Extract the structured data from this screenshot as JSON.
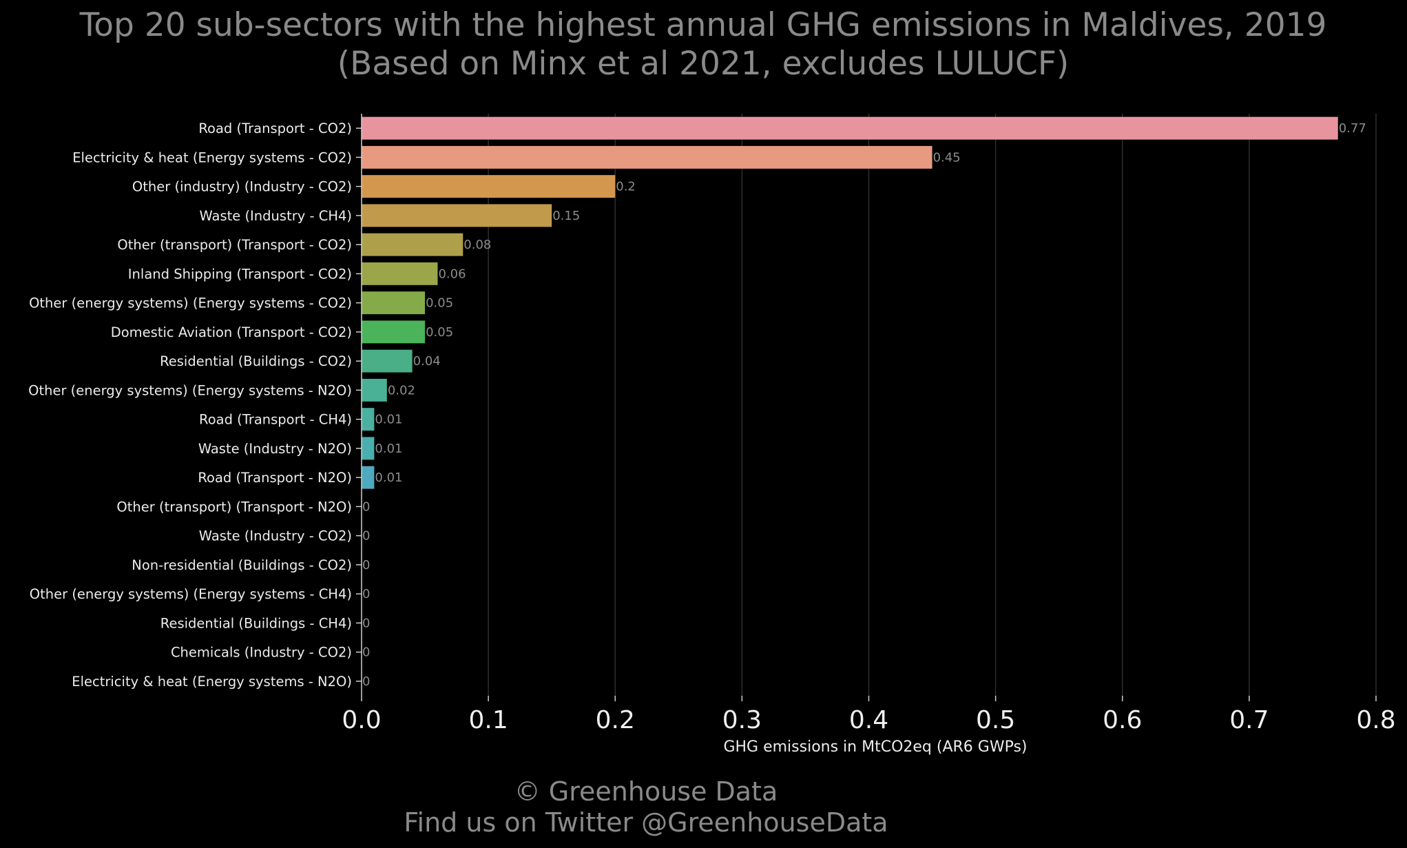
{
  "chart_data": {
    "type": "bar",
    "orientation": "horizontal",
    "title": "Top 20 sub-sectors with the highest annual GHG emissions in Maldives, 2019",
    "subtitle": "(Based on Minx et al 2021, excludes LULUCF)",
    "xlabel": "GHG emissions in MtCO2eq (AR6 GWPs)",
    "ylabel": "",
    "xlim": [
      0,
      0.8
    ],
    "xticks": [
      0.0,
      0.1,
      0.2,
      0.3,
      0.4,
      0.5,
      0.6,
      0.7,
      0.8
    ],
    "xtick_labels": [
      "0.0",
      "0.1",
      "0.2",
      "0.3",
      "0.4",
      "0.5",
      "0.6",
      "0.7",
      "0.8"
    ],
    "grid": "vertical",
    "legend": "none",
    "categories": [
      "Road (Transport - CO2)",
      "Electricity & heat (Energy systems - CO2)",
      "Other (industry) (Industry - CO2)",
      "Waste (Industry - CH4)",
      "Other (transport) (Transport - CO2)",
      "Inland Shipping (Transport - CO2)",
      "Other (energy systems) (Energy systems - CO2)",
      "Domestic Aviation (Transport - CO2)",
      "Residential (Buildings - CO2)",
      "Other (energy systems) (Energy systems - N2O)",
      "Road (Transport - CH4)",
      "Waste (Industry - N2O)",
      "Road (Transport - N2O)",
      "Other (transport) (Transport - N2O)",
      "Waste (Industry - CO2)",
      "Non-residential (Buildings - CO2)",
      "Other (energy systems) (Energy systems - CH4)",
      "Residential (Buildings - CH4)",
      "Chemicals (Industry - CO2)",
      "Electricity & heat (Energy systems - N2O)"
    ],
    "values": [
      0.77,
      0.45,
      0.2,
      0.15,
      0.08,
      0.06,
      0.05,
      0.05,
      0.04,
      0.02,
      0.01,
      0.01,
      0.01,
      0,
      0,
      0,
      0,
      0,
      0,
      0
    ],
    "value_labels": [
      "0.77",
      "0.45",
      "0.2",
      "0.15",
      "0.08",
      "0.06",
      "0.05",
      "0.05",
      "0.04",
      "0.02",
      "0.01",
      "0.01",
      "0.01",
      "0",
      "0",
      "0",
      "0",
      "0",
      "0",
      "0"
    ],
    "colors": [
      "#e8949f",
      "#e79a80",
      "#d4974e",
      "#c19a4b",
      "#aea04b",
      "#9ba549",
      "#84aa4a",
      "#4bb35a",
      "#4aae87",
      "#4ab096",
      "#4ab0a0",
      "#4aaeae",
      "#4eaabf",
      "#54a6cc",
      "#6a9fd8",
      "#8f96dd",
      "#b08adf",
      "#cd82d8",
      "#df7fc2",
      "#e486ae"
    ]
  },
  "footer": {
    "copyright": "© Greenhouse Data",
    "twitter": "Find us on Twitter @GreenhouseData"
  }
}
